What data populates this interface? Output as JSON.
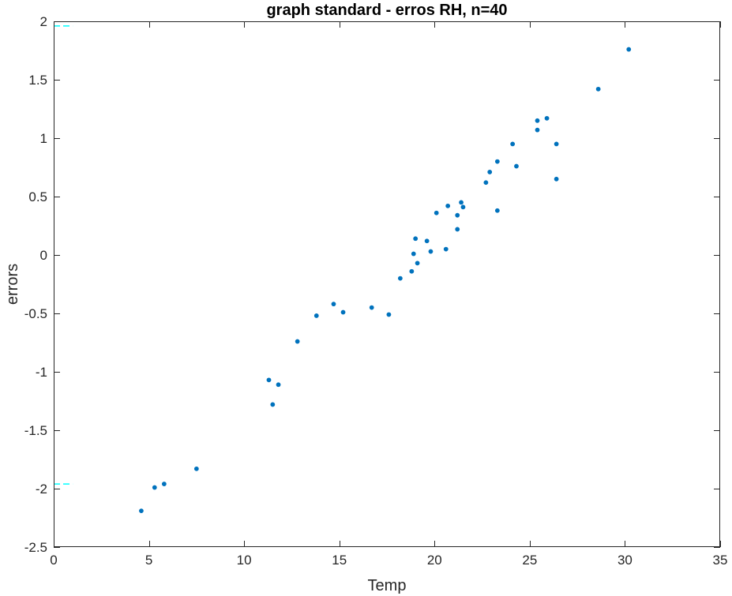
{
  "chart_data": {
    "type": "scatter",
    "title": "graph standard - erros RH, n=40",
    "xlabel": "Temp",
    "ylabel": "errors",
    "xlim": [
      0,
      35
    ],
    "ylim": [
      -2.5,
      2
    ],
    "xticks": [
      0,
      5,
      10,
      15,
      20,
      25,
      30,
      35
    ],
    "yticks": [
      -2.5,
      -2,
      -1.5,
      -1,
      -0.5,
      0,
      0.5,
      1,
      1.5,
      2
    ],
    "xtick_labels": [
      "0",
      "5",
      "10",
      "15",
      "20",
      "25",
      "30",
      "35"
    ],
    "ytick_labels": [
      "-2.5",
      "-2",
      "-1.5",
      "-1",
      "-0.5",
      "0",
      "0.5",
      "1",
      "1.5",
      "2"
    ],
    "grid": false,
    "series": [
      {
        "marker_color": "#0072BD",
        "points": [
          {
            "x": 4.6,
            "y": -2.19
          },
          {
            "x": 5.3,
            "y": -1.99
          },
          {
            "x": 5.8,
            "y": -1.96
          },
          {
            "x": 7.5,
            "y": -1.83
          },
          {
            "x": 11.3,
            "y": -1.07
          },
          {
            "x": 11.5,
            "y": -1.28
          },
          {
            "x": 11.8,
            "y": -1.11
          },
          {
            "x": 12.8,
            "y": -0.74
          },
          {
            "x": 13.8,
            "y": -0.52
          },
          {
            "x": 14.7,
            "y": -0.42
          },
          {
            "x": 15.2,
            "y": -0.49
          },
          {
            "x": 16.7,
            "y": -0.45
          },
          {
            "x": 17.6,
            "y": -0.51
          },
          {
            "x": 18.2,
            "y": -0.2
          },
          {
            "x": 18.8,
            "y": -0.14
          },
          {
            "x": 18.9,
            "y": 0.01
          },
          {
            "x": 19.0,
            "y": 0.14
          },
          {
            "x": 19.1,
            "y": -0.07
          },
          {
            "x": 19.6,
            "y": 0.12
          },
          {
            "x": 19.8,
            "y": 0.03
          },
          {
            "x": 20.1,
            "y": 0.36
          },
          {
            "x": 20.6,
            "y": 0.05
          },
          {
            "x": 20.7,
            "y": 0.42
          },
          {
            "x": 21.2,
            "y": 0.22
          },
          {
            "x": 21.2,
            "y": 0.34
          },
          {
            "x": 21.4,
            "y": 0.45
          },
          {
            "x": 21.5,
            "y": 0.41
          },
          {
            "x": 22.7,
            "y": 0.62
          },
          {
            "x": 22.9,
            "y": 0.71
          },
          {
            "x": 23.3,
            "y": 0.8
          },
          {
            "x": 23.3,
            "y": 0.38
          },
          {
            "x": 24.1,
            "y": 0.95
          },
          {
            "x": 24.3,
            "y": 0.76
          },
          {
            "x": 25.4,
            "y": 1.15
          },
          {
            "x": 25.4,
            "y": 1.07
          },
          {
            "x": 25.9,
            "y": 1.17
          },
          {
            "x": 26.4,
            "y": 0.95
          },
          {
            "x": 26.4,
            "y": 0.65
          },
          {
            "x": 28.6,
            "y": 1.42
          },
          {
            "x": 30.2,
            "y": 1.76
          }
        ]
      }
    ],
    "reference_lines": [
      {
        "y": 1.96,
        "x_range": [
          0,
          1
        ],
        "color": "#00FFFF",
        "style": "dashed"
      },
      {
        "y": -1.96,
        "x_range": [
          0,
          1
        ],
        "color": "#00FFFF",
        "style": "dashed"
      }
    ]
  }
}
